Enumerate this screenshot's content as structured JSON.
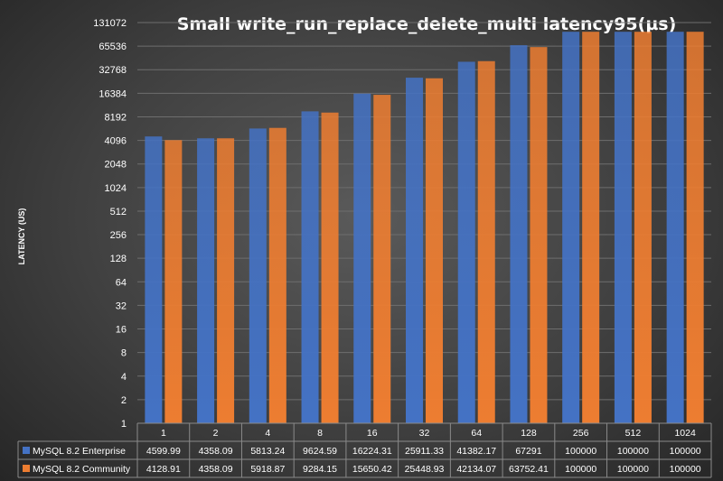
{
  "chart_data": {
    "type": "bar",
    "title": "Small  write_run_replace_delete_multi    latency95(µs)",
    "ylabel": "LATENCY (US)",
    "yscale": "log2",
    "ylim": [
      1,
      131072
    ],
    "yticks": [
      "1",
      "2",
      "4",
      "8",
      "16",
      "32",
      "64",
      "128",
      "256",
      "512",
      "1024",
      "2048",
      "4096",
      "8192",
      "16384",
      "32768",
      "65536",
      "131072"
    ],
    "categories": [
      "1",
      "2",
      "4",
      "8",
      "16",
      "32",
      "64",
      "128",
      "256",
      "512",
      "1024"
    ],
    "grid": true,
    "legend": "data table",
    "series": [
      {
        "name": "MySQL 8.2 Enterprise",
        "color": "#4472C4",
        "values": [
          4599.99,
          4358.09,
          5813.24,
          9624.59,
          16224.31,
          25911.33,
          41382.17,
          67291,
          100000,
          100000,
          100000
        ],
        "labels": [
          "4599.99",
          "4358.09",
          "5813.24",
          "9624.59",
          "16224.31",
          "25911.33",
          "41382.17",
          "67291",
          "100000",
          "100000",
          "100000"
        ]
      },
      {
        "name": "MySQL 8.2 Community",
        "color": "#ED7D31",
        "values": [
          4128.91,
          4358.09,
          5918.87,
          9284.15,
          15650.42,
          25448.93,
          42134.07,
          63752.41,
          100000,
          100000,
          100000
        ],
        "labels": [
          "4128.91",
          "4358.09",
          "5918.87",
          "9284.15",
          "15650.42",
          "25448.93",
          "42134.07",
          "63752.41",
          "100000",
          "100000",
          "100000"
        ]
      }
    ]
  }
}
